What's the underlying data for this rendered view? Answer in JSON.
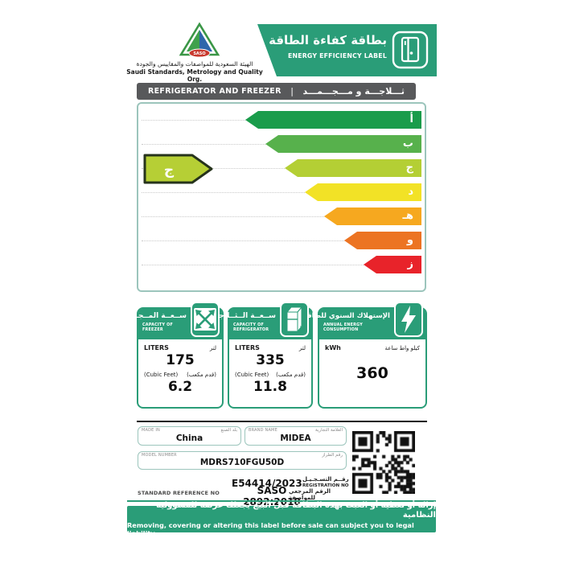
{
  "header": {
    "logo_text": "SASO",
    "org_name_ar": "الهيئة السعودية للمواصفات والمقاييس والجودة",
    "org_name_en": "Saudi Standards, Metrology and Quality Org.",
    "title_ar": "بطاقة كفاءة الطاقة",
    "title_en": "ENERGY EFFICIENCY LABEL"
  },
  "product_bar": {
    "name_en": "REFRIGERATOR AND FREEZER",
    "separator": "|",
    "name_ar": "ثـــلاجـــة و مـــجـــمـــد"
  },
  "rating": {
    "current_letter": "ج",
    "current_grade_en": "C",
    "pointer_color": "#b6cf35",
    "pointer_border": "#26331c",
    "grades": [
      {
        "letter": "أ",
        "grade_en": "A",
        "color": "#1a9c4b"
      },
      {
        "letter": "ب",
        "grade_en": "B",
        "color": "#57b14c"
      },
      {
        "letter": "ج",
        "grade_en": "C",
        "color": "#b4cf34"
      },
      {
        "letter": "د",
        "grade_en": "D",
        "color": "#f2e226"
      },
      {
        "letter": "هـ",
        "grade_en": "E",
        "color": "#f6a81f"
      },
      {
        "letter": "و",
        "grade_en": "F",
        "color": "#ec7423"
      },
      {
        "letter": "ز",
        "grade_en": "G",
        "color": "#e8232a"
      }
    ]
  },
  "panels": {
    "freezer": {
      "title_ar": "ســعــة المــجــمــد",
      "title_en": "CAPACITY OF FREEZER",
      "unit1_en": "LITERS",
      "unit1_ar": "لتر",
      "value1": "175",
      "unit2_en": "(Cubic Feet)",
      "unit2_ar": "(قدم مكعب)",
      "value2": "6.2"
    },
    "refrigerator": {
      "title_ar": "ســعــة الــثــلاجــة",
      "title_en": "CAPACITY OF REFRIGERATOR",
      "unit1_en": "LITERS",
      "unit1_ar": "لتر",
      "value1": "335",
      "unit2_en": "(Cubic Feet)",
      "unit2_ar": "(قدم مكعب)",
      "value2": "11.8"
    },
    "energy": {
      "title_ar": "الإستهلاك السنوي للطاقة",
      "title_en": "ANNUAL ENERGY CONSUMPTION",
      "unit_en": "kWh",
      "unit_ar": "كيلو واط ساعة",
      "value": "360"
    }
  },
  "info": {
    "made_in": {
      "label_en": "MADE IN",
      "label_ar": "بلد الصنع",
      "value": "China"
    },
    "brand": {
      "label_en": "BRAND NAME",
      "label_ar": "العلامة التجارية",
      "value": "MIDEA"
    },
    "model": {
      "label_en": "MODEL NUMBER",
      "label_ar": "رقم الطراز",
      "value": "MDRS710FGU50D"
    },
    "registration": {
      "value": "E54414/2023",
      "label_ar": "رقــم التسـجـيـل",
      "label_en": "REGISTRATION NO"
    },
    "standard": {
      "label_en": "STANDARD REFERENCE NO",
      "value": "SASO 2892:2018",
      "label_ar": "الرقم المرجعي للمواصفة"
    }
  },
  "footer": {
    "warning_ar": "إزالة أو تغطية أو العبث بهذه البطاقة قبل البيع يجعلك عرضة للمسؤولية النظامية",
    "warning_en": "Removing, covering or altering this label before sale can subject you to legal liability"
  },
  "colors": {
    "brand_green": "#2a9d78",
    "bar_gray": "#58595b",
    "box_border": "#9cc5bc"
  }
}
